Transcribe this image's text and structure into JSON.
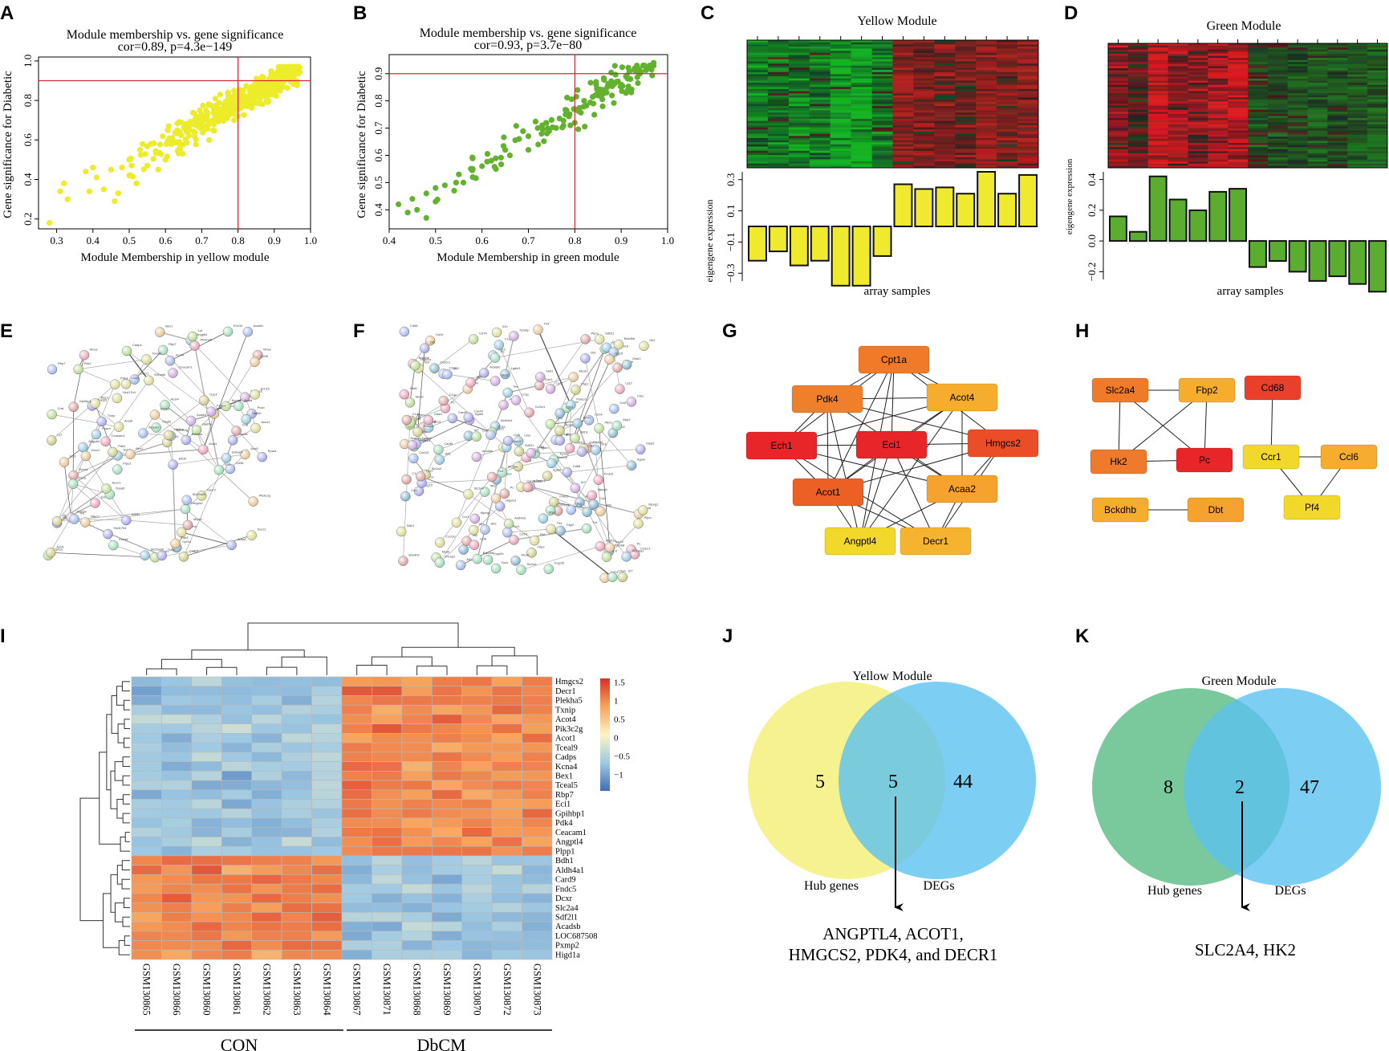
{
  "panel_letters": [
    "A",
    "B",
    "C",
    "D",
    "E",
    "F",
    "G",
    "H",
    "I",
    "J",
    "K"
  ],
  "colors": {
    "yellow_point": "#ecec2a",
    "green_point": "#62b22f",
    "yellow_bar": "#f0ea2e",
    "green_bar": "#5aad2e",
    "refline": "#d8283a",
    "venn_yellow": "#f4f07c",
    "venn_green": "#6cc391",
    "venn_blue": "#5bc2ef"
  },
  "chart_data": [
    {
      "panel": "A",
      "type": "scatter",
      "title": "Module membership vs. gene significance",
      "subtitle": "cor=0.89, p=4.3e−149",
      "xlabel": "Module Membership in yellow module",
      "ylabel": "Gene significance for Diabetic",
      "xlim": [
        0.25,
        1.0
      ],
      "ylim": [
        0.15,
        1.02
      ],
      "xticks": [
        "0.3",
        "0.4",
        "0.5",
        "0.6",
        "0.7",
        "0.8",
        "0.9",
        "1.0"
      ],
      "yticks": [
        "0.2",
        "0.4",
        "0.6",
        "0.8",
        "1.0"
      ],
      "ref_x": 0.8,
      "ref_y": 0.9,
      "points": [
        [
          0.28,
          0.18
        ],
        [
          0.31,
          0.34
        ],
        [
          0.32,
          0.38
        ],
        [
          0.33,
          0.3
        ],
        [
          0.38,
          0.44
        ],
        [
          0.39,
          0.34
        ],
        [
          0.4,
          0.46
        ],
        [
          0.41,
          0.41
        ],
        [
          0.43,
          0.35
        ],
        [
          0.45,
          0.45
        ],
        [
          0.46,
          0.29
        ],
        [
          0.47,
          0.33
        ],
        [
          0.48,
          0.46
        ],
        [
          0.5,
          0.5
        ],
        [
          0.5,
          0.42
        ],
        [
          0.52,
          0.38
        ],
        [
          0.53,
          0.55
        ],
        [
          0.55,
          0.47
        ],
        [
          0.56,
          0.58
        ],
        [
          0.58,
          0.45
        ],
        [
          0.6,
          0.5
        ],
        [
          0.62,
          0.6
        ],
        [
          0.64,
          0.55
        ],
        [
          0.66,
          0.65
        ],
        [
          0.68,
          0.62
        ],
        [
          0.7,
          0.7
        ],
        [
          0.72,
          0.68
        ],
        [
          0.74,
          0.74
        ],
        [
          0.76,
          0.72
        ],
        [
          0.78,
          0.78
        ],
        [
          0.8,
          0.8
        ],
        [
          0.82,
          0.82
        ],
        [
          0.84,
          0.84
        ],
        [
          0.86,
          0.87
        ],
        [
          0.88,
          0.88
        ],
        [
          0.9,
          0.9
        ],
        [
          0.92,
          0.92
        ],
        [
          0.94,
          0.94
        ],
        [
          0.96,
          0.96
        ]
      ],
      "cloud": {
        "x_range": [
          0.5,
          0.97
        ],
        "slope": 1.05,
        "intercept": -0.05,
        "spread": 0.12,
        "n": 420
      }
    },
    {
      "panel": "B",
      "type": "scatter",
      "title": "Module membership vs. gene significance",
      "subtitle": "cor=0.93, p=3.7e−80",
      "xlabel": "Module Membership in green module",
      "ylabel": "Gene significance for Diabetic",
      "xlim": [
        0.4,
        1.0
      ],
      "ylim": [
        0.33,
        0.97
      ],
      "xticks": [
        "0.4",
        "0.5",
        "0.6",
        "0.7",
        "0.8",
        "0.9",
        "1.0"
      ],
      "yticks": [
        "0.4",
        "0.5",
        "0.6",
        "0.7",
        "0.8",
        "0.9"
      ],
      "ref_x": 0.8,
      "ref_y": 0.9,
      "points": [
        [
          0.42,
          0.42
        ],
        [
          0.44,
          0.39
        ],
        [
          0.45,
          0.44
        ],
        [
          0.46,
          0.4
        ],
        [
          0.48,
          0.46
        ],
        [
          0.48,
          0.37
        ],
        [
          0.5,
          0.43
        ],
        [
          0.5,
          0.48
        ],
        [
          0.52,
          0.49
        ],
        [
          0.54,
          0.47
        ],
        [
          0.55,
          0.53
        ],
        [
          0.56,
          0.5
        ],
        [
          0.58,
          0.55
        ],
        [
          0.58,
          0.52
        ],
        [
          0.6,
          0.56
        ],
        [
          0.62,
          0.58
        ],
        [
          0.63,
          0.55
        ],
        [
          0.65,
          0.62
        ],
        [
          0.66,
          0.6
        ],
        [
          0.68,
          0.66
        ],
        [
          0.7,
          0.67
        ],
        [
          0.7,
          0.62
        ],
        [
          0.72,
          0.7
        ],
        [
          0.74,
          0.68
        ],
        [
          0.75,
          0.73
        ],
        [
          0.76,
          0.7
        ],
        [
          0.78,
          0.75
        ],
        [
          0.8,
          0.77
        ],
        [
          0.8,
          0.72
        ],
        [
          0.82,
          0.8
        ],
        [
          0.84,
          0.79
        ],
        [
          0.85,
          0.83
        ],
        [
          0.86,
          0.78
        ],
        [
          0.87,
          0.85
        ],
        [
          0.88,
          0.82
        ],
        [
          0.89,
          0.87
        ],
        [
          0.9,
          0.86
        ],
        [
          0.91,
          0.89
        ],
        [
          0.92,
          0.88
        ],
        [
          0.93,
          0.91
        ],
        [
          0.94,
          0.9
        ],
        [
          0.95,
          0.93
        ],
        [
          0.96,
          0.92
        ],
        [
          0.97,
          0.94
        ]
      ],
      "cloud": {
        "x_range": [
          0.5,
          0.97
        ],
        "slope": 1.0,
        "intercept": -0.03,
        "spread": 0.1,
        "n": 110
      }
    },
    {
      "panel": "C",
      "type": "bar",
      "title": "Yellow Module",
      "ylabel": "eigengene expression",
      "xlabel": "array samples",
      "ylim": [
        -0.35,
        0.35
      ],
      "yticks": [
        "−0.3",
        "−0.1",
        "0.1",
        "0.3"
      ],
      "values": [
        -0.22,
        -0.16,
        -0.25,
        -0.22,
        -0.38,
        -0.38,
        -0.19,
        0.27,
        0.24,
        0.25,
        0.21,
        0.35,
        0.21,
        0.33
      ]
    },
    {
      "panel": "D",
      "type": "bar",
      "title": "Green Module",
      "ylabel": "eigengene expression",
      "xlabel": "array samples",
      "ylim": [
        -0.25,
        0.45
      ],
      "yticks": [
        "−0.2",
        "0.0",
        "0.2",
        "0.4"
      ],
      "values": [
        0.16,
        0.06,
        0.42,
        0.27,
        0.2,
        0.32,
        0.34,
        -0.17,
        -0.13,
        -0.2,
        -0.26,
        -0.23,
        -0.28,
        -0.33
      ]
    },
    {
      "panel": "I",
      "type": "heatmap",
      "columns": [
        "GSM130865",
        "GSM130866",
        "GSM130860",
        "GSM130861",
        "GSM130862",
        "GSM130863",
        "GSM130864",
        "GSM130867",
        "GSM130871",
        "GSM130868",
        "GSM130869",
        "GSM130870",
        "GSM130872",
        "GSM130873"
      ],
      "groups": [
        {
          "name": "CON",
          "n": 7
        },
        {
          "name": "DbCM",
          "n": 7
        }
      ],
      "legend_ticks": [
        "1.5",
        "1",
        "0.5",
        "0",
        "−0.5",
        "−1"
      ],
      "range": [
        -1.5,
        1.6
      ],
      "up_rows": [
        "Hmgcs2",
        "Decr1",
        "Plekha5",
        "Txnip",
        "Acot4",
        "Pik3c2g",
        "Acot1",
        "Tceal9",
        "Cadps",
        "Kcna4",
        "Bex1",
        "Tceal5",
        "Rbp7",
        "Eci1",
        "Gpihbp1",
        "Pdk4",
        "Ceacam1",
        "Angptl4",
        "Plpp1"
      ],
      "down_rows": [
        "Bdh1",
        "Aldh4a1",
        "Card9",
        "Fndc5",
        "Dcxr",
        "Slc2a4",
        "Sdf2l1",
        "Acadsb",
        "LOC687508",
        "Pxmp2",
        "Higd1a"
      ]
    }
  ],
  "heatmap_C": {
    "title": "Yellow Module"
  },
  "heatmap_D": {
    "title": "Green Module"
  },
  "network_G": {
    "nodes": [
      {
        "id": "Cpt1a",
        "color": "#f07a28"
      },
      {
        "id": "Pdk4",
        "color": "#ef7f2b"
      },
      {
        "id": "Acot4",
        "color": "#f6ad2e"
      },
      {
        "id": "Ech1",
        "color": "#e8262a"
      },
      {
        "id": "Eci1",
        "color": "#e8262a"
      },
      {
        "id": "Hmgcs2",
        "color": "#eb4d27"
      },
      {
        "id": "Acot1",
        "color": "#ec6025"
      },
      {
        "id": "Acaa2",
        "color": "#f5a22e"
      },
      {
        "id": "Angptl4",
        "color": "#f2d82a"
      },
      {
        "id": "Decr1",
        "color": "#f5b32f"
      }
    ],
    "edges": [
      [
        "Cpt1a",
        "Pdk4"
      ],
      [
        "Cpt1a",
        "Acot4"
      ],
      [
        "Cpt1a",
        "Ech1"
      ],
      [
        "Cpt1a",
        "Eci1"
      ],
      [
        "Cpt1a",
        "Hmgcs2"
      ],
      [
        "Cpt1a",
        "Acot1"
      ],
      [
        "Cpt1a",
        "Angptl4"
      ],
      [
        "Pdk4",
        "Acot4"
      ],
      [
        "Pdk4",
        "Ech1"
      ],
      [
        "Pdk4",
        "Hmgcs2"
      ],
      [
        "Pdk4",
        "Acot1"
      ],
      [
        "Pdk4",
        "Acaa2"
      ],
      [
        "Pdk4",
        "Angptl4"
      ],
      [
        "Acot4",
        "Eci1"
      ],
      [
        "Acot4",
        "Ech1"
      ],
      [
        "Acot4",
        "Acot1"
      ],
      [
        "Acot4",
        "Acaa2"
      ],
      [
        "Acot4",
        "Angptl4"
      ],
      [
        "Ech1",
        "Eci1"
      ],
      [
        "Ech1",
        "Acot1"
      ],
      [
        "Ech1",
        "Decr1"
      ],
      [
        "Ech1",
        "Acaa2"
      ],
      [
        "Eci1",
        "Hmgcs2"
      ],
      [
        "Eci1",
        "Acot1"
      ],
      [
        "Eci1",
        "Acaa2"
      ],
      [
        "Eci1",
        "Decr1"
      ],
      [
        "Eci1",
        "Angptl4"
      ],
      [
        "Hmgcs2",
        "Acot1"
      ],
      [
        "Hmgcs2",
        "Acaa2"
      ],
      [
        "Hmgcs2",
        "Decr1"
      ],
      [
        "Acot1",
        "Angptl4"
      ],
      [
        "Acot1",
        "Decr1"
      ],
      [
        "Acaa2",
        "Angptl4"
      ],
      [
        "Acaa2",
        "Decr1"
      ]
    ]
  },
  "network_H": {
    "nodes": [
      {
        "id": "Slc2a4",
        "color": "#f07a28"
      },
      {
        "id": "Fbp2",
        "color": "#f6ad2e"
      },
      {
        "id": "Cd68",
        "color": "#e8402a"
      },
      {
        "id": "Hk2",
        "color": "#ef7a2b"
      },
      {
        "id": "Pc",
        "color": "#e8262a"
      },
      {
        "id": "Ccr1",
        "color": "#f2d82a"
      },
      {
        "id": "Ccl6",
        "color": "#f6ad2e"
      },
      {
        "id": "Bckdhb",
        "color": "#f6ad2e"
      },
      {
        "id": "Dbt",
        "color": "#f5a22e"
      },
      {
        "id": "Pf4",
        "color": "#f2d82a"
      }
    ],
    "edges": [
      [
        "Slc2a4",
        "Fbp2"
      ],
      [
        "Slc2a4",
        "Hk2"
      ],
      [
        "Slc2a4",
        "Pc"
      ],
      [
        "Fbp2",
        "Hk2"
      ],
      [
        "Fbp2",
        "Pc"
      ],
      [
        "Hk2",
        "Pc"
      ],
      [
        "Cd68",
        "Ccr1"
      ],
      [
        "Ccr1",
        "Ccl6"
      ],
      [
        "Ccr1",
        "Pf4"
      ],
      [
        "Ccl6",
        "Pf4"
      ],
      [
        "Bckdhb",
        "Dbt"
      ]
    ]
  },
  "network_E": {
    "labels": [
      "Cpt1a",
      "Pdk4",
      "Acot1",
      "Acot4",
      "Hmgcs2",
      "Eci1",
      "Ech1",
      "Decr1",
      "Acaa2",
      "Angptl4",
      "Txnip",
      "Bex1",
      "Rbp7",
      "Cadps",
      "Kcna4",
      "Tceal5",
      "Tceal9",
      "Plpp1",
      "Gpihbp1",
      "Ceacam1",
      "Pik3c2g",
      "Plekha5",
      "Acadm",
      "Acsl1",
      "Hadha",
      "Hadhb",
      "Etfdh",
      "Mlycd",
      "Crat",
      "Slc25a20",
      "Ucp3",
      "Fabp3",
      "Cd36",
      "Lpl",
      "Ppara",
      "Pdk2",
      "Acadl",
      "Acadvl",
      "Echs1",
      "Hsd17b4",
      "Ehhadh",
      "Acox1",
      "Decr2",
      "Ech1b",
      "Mcee",
      "Auh",
      "Ivd",
      "Bckdha",
      "Pcca",
      "Pccb"
    ]
  },
  "network_F": {
    "labels": [
      "Bdh1",
      "Aldh4a1",
      "Card9",
      "Fndc5",
      "Dcxr",
      "Slc2a4",
      "Sdf2l1",
      "Acadsb",
      "Pxmp2",
      "Higd1a",
      "Hk2",
      "Pc",
      "Fbp2",
      "Cd68",
      "Ccr1",
      "Ccl6",
      "Pf4",
      "Bckdhb",
      "Dbt",
      "Mcub",
      "Tlr4",
      "Lyz2",
      "Cd14",
      "Itgam",
      "Emr1",
      "Csf1r",
      "C1qa",
      "C1qb",
      "C1qc",
      "Fcgr2b",
      "Tyrobp",
      "Lgals3",
      "Ctss",
      "Cd74",
      "Aif1",
      "Mpeg1",
      "Ptprc",
      "Cx3cr1",
      "Ccl2",
      "Ccl7",
      "Il1b",
      "Tnf",
      "Cxcl10",
      "Irf7",
      "Isg15",
      "Oasl1",
      "Ifit3",
      "Stat1",
      "Gbp2",
      "Psmb8"
    ]
  },
  "venn_J": {
    "title": "Yellow Module",
    "left_n": "5",
    "mid_n": "5",
    "right_n": "44",
    "left_label": "Hub genes",
    "right_label": "DEGs",
    "result_line1": "ANGPTL4, ACOT1,",
    "result_line2": "HMGCS2, PDK4, and DECR1"
  },
  "venn_K": {
    "title": "Green Module",
    "left_n": "8",
    "mid_n": "2",
    "right_n": "47",
    "left_label": "Hub genes",
    "right_label": "DEGs",
    "result_line1": "SLC2A4, HK2"
  }
}
